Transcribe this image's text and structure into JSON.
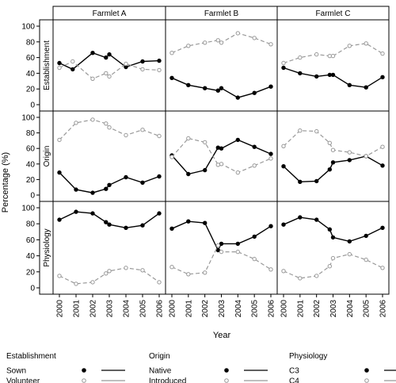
{
  "chart_data": {
    "type": "line",
    "ylabel": "Percentage (%)",
    "xlabel": "Year",
    "x": [
      2000,
      2001,
      2002,
      2003,
      2004,
      2005,
      2006
    ],
    "x_tick_labels": [
      "2000",
      "2001",
      "2002",
      "2003",
      "2004",
      "2005",
      "2006"
    ],
    "ylim": [
      0,
      100
    ],
    "yticks": [
      0,
      20,
      40,
      60,
      80,
      100
    ],
    "grid": false,
    "columns": [
      "Farmlet A",
      "Farmlet B",
      "Farmlet C"
    ],
    "rows": [
      "Establishment",
      "Origin",
      "Physiology"
    ],
    "style": {
      "solid_color": "#000000",
      "dashed_color": "#999999"
    },
    "panels": [
      {
        "row": "Establishment",
        "column": "Farmlet A",
        "series": [
          {
            "name": "Sown",
            "style": "solid",
            "x": [
              2000,
              2000.8,
              2002,
              2002.8,
              2003,
              2004,
              2005,
              2006
            ],
            "y": [
              53,
              45,
              66,
              60,
              64,
              48,
              55,
              56
            ]
          },
          {
            "name": "Volunteer",
            "style": "dashed",
            "x": [
              2000,
              2000.8,
              2002,
              2002.8,
              2003,
              2004,
              2005,
              2006
            ],
            "y": [
              47,
              55,
              33,
              40,
              36,
              52,
              45,
              44
            ]
          }
        ]
      },
      {
        "row": "Establishment",
        "column": "Farmlet B",
        "series": [
          {
            "name": "Sown",
            "style": "solid",
            "x": [
              2000,
              2001,
              2002,
              2002.8,
              2003,
              2004,
              2005,
              2006
            ],
            "y": [
              34,
              25,
              21,
              18,
              21,
              9,
              15,
              23
            ]
          },
          {
            "name": "Volunteer",
            "style": "dashed",
            "x": [
              2000,
              2001,
              2002,
              2002.8,
              2003,
              2004,
              2005,
              2006
            ],
            "y": [
              66,
              75,
              79,
              82,
              79,
              91,
              85,
              77
            ]
          }
        ]
      },
      {
        "row": "Establishment",
        "column": "Farmlet C",
        "series": [
          {
            "name": "Sown",
            "style": "solid",
            "x": [
              2000,
              2001,
              2002,
              2002.8,
              2003,
              2004,
              2005,
              2006
            ],
            "y": [
              47,
              40,
              36,
              38,
              38,
              25,
              22,
              35
            ]
          },
          {
            "name": "Volunteer",
            "style": "dashed",
            "x": [
              2000,
              2001,
              2002,
              2002.8,
              2003,
              2004,
              2005,
              2006
            ],
            "y": [
              53,
              60,
              64,
              62,
              62,
              75,
              78,
              65
            ]
          }
        ]
      },
      {
        "row": "Origin",
        "column": "Farmlet A",
        "series": [
          {
            "name": "Native",
            "style": "solid",
            "x": [
              2000,
              2001,
              2002,
              2002.8,
              2003,
              2004,
              2005,
              2006
            ],
            "y": [
              29,
              7,
              3,
              8,
              13,
              23,
              16,
              24
            ]
          },
          {
            "name": "Introduced",
            "style": "dashed",
            "x": [
              2000,
              2001,
              2002,
              2002.8,
              2003,
              2004,
              2005,
              2006
            ],
            "y": [
              71,
              93,
              97,
              92,
              87,
              77,
              84,
              76
            ]
          }
        ]
      },
      {
        "row": "Origin",
        "column": "Farmlet B",
        "series": [
          {
            "name": "Native",
            "style": "solid",
            "x": [
              2000,
              2001,
              2002,
              2002.8,
              2003,
              2004,
              2005,
              2006
            ],
            "y": [
              51,
              27,
              32,
              61,
              60,
              71,
              62,
              53
            ]
          },
          {
            "name": "Introduced",
            "style": "dashed",
            "x": [
              2000,
              2001,
              2002,
              2002.8,
              2003,
              2004,
              2005,
              2006
            ],
            "y": [
              49,
              73,
              68,
              39,
              40,
              29,
              38,
              47
            ]
          }
        ]
      },
      {
        "row": "Origin",
        "column": "Farmlet C",
        "series": [
          {
            "name": "Native",
            "style": "solid",
            "x": [
              2000,
              2001,
              2002,
              2002.8,
              2003,
              2004,
              2005,
              2006
            ],
            "y": [
              37,
              17,
              18,
              33,
              42,
              45,
              50,
              38
            ]
          },
          {
            "name": "Introduced",
            "style": "dashed",
            "x": [
              2000,
              2001,
              2002,
              2002.8,
              2003,
              2004,
              2005,
              2006
            ],
            "y": [
              63,
              83,
              82,
              67,
              58,
              55,
              50,
              62
            ]
          }
        ]
      },
      {
        "row": "Physiology",
        "column": "Farmlet A",
        "series": [
          {
            "name": "C3",
            "style": "solid",
            "x": [
              2000,
              2001,
              2002,
              2002.8,
              2003,
              2004,
              2005,
              2006
            ],
            "y": [
              85,
              95,
              93,
              82,
              79,
              75,
              78,
              93
            ]
          },
          {
            "name": "C4",
            "style": "dashed",
            "x": [
              2000,
              2001,
              2002,
              2002.8,
              2003,
              2004,
              2005,
              2006
            ],
            "y": [
              15,
              5,
              7,
              18,
              21,
              25,
              22,
              7
            ]
          }
        ]
      },
      {
        "row": "Physiology",
        "column": "Farmlet B",
        "series": [
          {
            "name": "C3",
            "style": "solid",
            "x": [
              2000,
              2001,
              2002,
              2002.8,
              2003,
              2004,
              2005,
              2006
            ],
            "y": [
              74,
              83,
              81,
              47,
              55,
              55,
              64,
              77
            ]
          },
          {
            "name": "C4",
            "style": "dashed",
            "x": [
              2000,
              2001,
              2002,
              2002.8,
              2003,
              2004,
              2005,
              2006
            ],
            "y": [
              26,
              17,
              19,
              53,
              45,
              45,
              36,
              23
            ]
          }
        ]
      },
      {
        "row": "Physiology",
        "column": "Farmlet C",
        "series": [
          {
            "name": "C3",
            "style": "solid",
            "x": [
              2000,
              2001,
              2002,
              2002.8,
              2003,
              2004,
              2005,
              2006
            ],
            "y": [
              79,
              88,
              85,
              73,
              63,
              58,
              65,
              75
            ]
          },
          {
            "name": "C4",
            "style": "dashed",
            "x": [
              2000,
              2001,
              2002,
              2002.8,
              2003,
              2004,
              2005,
              2006
            ],
            "y": [
              21,
              12,
              15,
              27,
              37,
              42,
              35,
              25
            ]
          }
        ]
      }
    ],
    "legend": {
      "placement": "bottom",
      "groups": [
        {
          "title": "Establishment",
          "items": [
            {
              "label": "Sown",
              "style": "solid"
            },
            {
              "label": "Volunteer",
              "style": "dashed"
            }
          ]
        },
        {
          "title": "Origin",
          "items": [
            {
              "label": "Native",
              "style": "solid"
            },
            {
              "label": "Introduced",
              "style": "dashed"
            }
          ]
        },
        {
          "title": "Physiology",
          "items": [
            {
              "label": "C3",
              "style": "solid"
            },
            {
              "label": "C4",
              "style": "dashed"
            }
          ]
        }
      ]
    }
  }
}
